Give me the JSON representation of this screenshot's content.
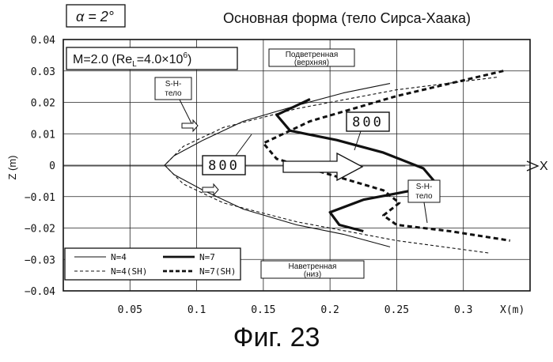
{
  "chart_data": {
    "type": "line",
    "title": "Основная форма (тело Сирса-Хаака)",
    "angle_label": "α = 2°",
    "condition_label": "M=2.0 (Re",
    "condition_sub": "L",
    "condition_mid": "=4.0×10",
    "condition_sup": "6",
    "condition_end": ")",
    "xlabel": "X(m)",
    "ylabel": "Z (m)",
    "x_axis_arrow_label": "X",
    "xlim": [
      0.0,
      0.35
    ],
    "ylim": [
      -0.04,
      0.04
    ],
    "xticks": [
      0.05,
      0.1,
      0.15,
      0.2,
      0.25,
      0.3
    ],
    "xtick_labels": [
      "0.05",
      "0.1",
      "0.15",
      "0.2",
      "0.25",
      "0.3"
    ],
    "yticks": [
      -0.04,
      -0.03,
      -0.02,
      -0.01,
      0,
      0.01,
      0.02,
      0.03,
      0.04
    ],
    "ytick_labels": [
      "−0.04",
      "−0.03",
      "−0.02",
      "−0.01",
      "0",
      "0.01",
      "0.02",
      "0.03",
      "0.04"
    ],
    "grid": true,
    "series": [
      {
        "name": "N=4",
        "style": "solid-thin",
        "x": [
          0.245,
          0.21,
          0.175,
          0.135,
          0.105,
          0.083,
          0.076,
          0.083,
          0.105,
          0.135,
          0.175,
          0.21,
          0.245
        ],
        "y": [
          0.026,
          0.023,
          0.019,
          0.014,
          0.008,
          0.003,
          0.0,
          -0.003,
          -0.008,
          -0.014,
          -0.019,
          -0.022,
          -0.026
        ]
      },
      {
        "name": "N=7",
        "style": "solid-thick",
        "x": [
          0.185,
          0.16,
          0.17,
          0.205,
          0.24,
          0.27,
          0.278,
          0.262,
          0.225,
          0.2,
          0.207,
          0.225
        ],
        "y": [
          0.021,
          0.016,
          0.011,
          0.008,
          0.004,
          -0.001,
          -0.005,
          -0.008,
          -0.011,
          -0.015,
          -0.019,
          -0.021
        ]
      },
      {
        "name": "N=4 (SH)",
        "style": "dashed-thin",
        "x": [
          0.325,
          0.25,
          0.175,
          0.12,
          0.09,
          0.076,
          0.09,
          0.12,
          0.175,
          0.25,
          0.32
        ],
        "y": [
          0.028,
          0.024,
          0.018,
          0.012,
          0.006,
          0.0,
          -0.006,
          -0.012,
          -0.018,
          -0.024,
          -0.028
        ]
      },
      {
        "name": "N=7 (SH)",
        "style": "dashed-thick",
        "x": [
          0.33,
          0.25,
          0.185,
          0.15,
          0.16,
          0.2,
          0.24,
          0.252,
          0.24,
          0.25,
          0.29,
          0.335
        ],
        "y": [
          0.03,
          0.022,
          0.014,
          0.007,
          0.002,
          -0.003,
          -0.008,
          -0.012,
          -0.016,
          -0.019,
          -0.021,
          -0.024
        ]
      }
    ],
    "legend": {
      "placement": "bottom-left",
      "entries": [
        "N=4",
        "N=7",
        "N=4(SH)",
        "N=7(SH)"
      ]
    },
    "annotations": {
      "leeward_line1": "Подветренная",
      "leeward_line2": "(верхняя)",
      "windward_line1": "Наветренная",
      "windward_line2": "(низ)",
      "sh_body_left_line1": "S-H-",
      "sh_body_left_line2": "тело",
      "sh_body_right_line1": "S-H-",
      "sh_body_right_line2": "тело",
      "label_800_left": "800",
      "label_800_right": "800"
    }
  },
  "figure_caption": "Фиг. 23"
}
